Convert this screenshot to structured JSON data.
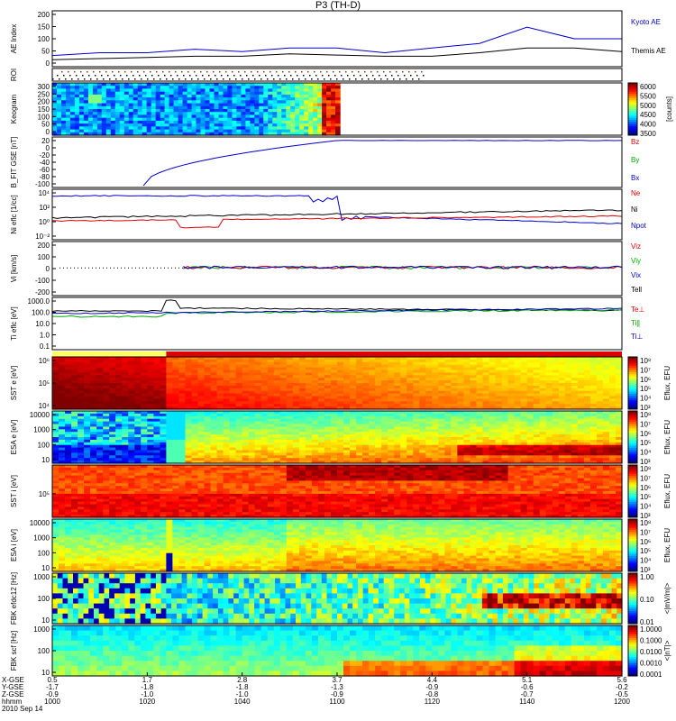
{
  "title": "P3 (TH-D)",
  "colors": {
    "blue": "#0000cc",
    "red": "#dd0000",
    "green": "#00aa00",
    "black": "#000000"
  },
  "chart_data": [
    {
      "type": "line",
      "panel": "ae_index",
      "ylabel": "AE Index",
      "yticks": [
        "200",
        "150",
        "100",
        "50",
        "0"
      ],
      "ylim": [
        -20,
        220
      ],
      "x_hhmm": [
        "1000",
        "1010",
        "1020",
        "1030",
        "1040",
        "1050",
        "1100",
        "1110",
        "1120",
        "1130",
        "1140",
        "1150",
        "1200"
      ],
      "series": [
        {
          "name": "Kyoto AE",
          "color": "#0000cc",
          "values": [
            28,
            40,
            40,
            55,
            45,
            60,
            60,
            40,
            60,
            80,
            150,
            100,
            100
          ]
        },
        {
          "name": "Themis AE",
          "color": "#000000",
          "values": [
            10,
            15,
            20,
            25,
            25,
            35,
            30,
            25,
            25,
            40,
            60,
            60,
            45
          ]
        }
      ]
    },
    {
      "type": "table",
      "panel": "roi",
      "ylabel": "ROI"
    },
    {
      "type": "heatmap",
      "panel": "keogram",
      "ylabel": "Keogram",
      "yticks": [
        "300",
        "250",
        "200",
        "150",
        "100",
        "50",
        "0"
      ],
      "colorbar_ticks": [
        "6000",
        "5500",
        "5000",
        "4500",
        "4000",
        "3500"
      ],
      "colorbar_label": "[counts]"
    },
    {
      "type": "line",
      "panel": "b_fit",
      "ylabel": "B_FIT GSE [nT]",
      "yticks": [
        "20",
        "0",
        "-20",
        "-40",
        "-60",
        "-80",
        "-100"
      ],
      "ylim": [
        -110,
        25
      ],
      "series": [
        {
          "name": "Bz",
          "color": "#dd0000"
        },
        {
          "name": "By",
          "color": "#00aa00"
        },
        {
          "name": "Bx",
          "color": "#0000cc"
        }
      ]
    },
    {
      "type": "line",
      "panel": "density",
      "ylabel": "Ni eflc [1/cc]",
      "yticks": [
        "10⁴",
        "10²",
        "10⁰",
        "10⁻²"
      ],
      "series": [
        {
          "name": "Ne",
          "color": "#dd0000"
        },
        {
          "name": "Ni",
          "color": "#000000"
        },
        {
          "name": "Npot",
          "color": "#0000cc"
        }
      ]
    },
    {
      "type": "line",
      "panel": "velocity",
      "ylabel": "Vi [km/s]",
      "yticks": [
        "200",
        "100",
        "0",
        "-100",
        "-200"
      ],
      "series": [
        {
          "name": "Viz",
          "color": "#dd0000"
        },
        {
          "name": "Viy",
          "color": "#00aa00"
        },
        {
          "name": "Vix",
          "color": "#0000cc"
        },
        {
          "name": "Tell",
          "color": "#000000"
        }
      ]
    },
    {
      "type": "line",
      "panel": "temperature",
      "ylabel": "Ti eflc [eV]",
      "yticks": [
        "1000.0",
        "100.0",
        "10.0",
        "1.0",
        "0.1"
      ],
      "series": [
        {
          "name": "Te⊥",
          "color": "#dd0000"
        },
        {
          "name": "Ti∥",
          "color": "#00aa00"
        },
        {
          "name": "Ti⊥",
          "color": "#0000cc"
        }
      ]
    },
    {
      "type": "heatmap",
      "panel": "sst_e",
      "ylabel": "SST e [eV]",
      "yticks": [
        "10⁶",
        "10⁵",
        "10⁴"
      ],
      "colorbar_ticks": [
        "10⁸",
        "10⁷",
        "10⁶",
        "10⁵",
        "10⁴",
        "10³"
      ],
      "colorbar_label": "Eflux, EFU"
    },
    {
      "type": "heatmap",
      "panel": "esa_e",
      "ylabel": "ESA e [eV]",
      "yticks": [
        "10000",
        "1000",
        "100",
        "10"
      ],
      "colorbar_ticks": [
        "10⁸",
        "10⁷",
        "10⁶",
        "10⁵",
        "10⁴",
        "10³"
      ],
      "colorbar_label": "Eflux, EFU"
    },
    {
      "type": "heatmap",
      "panel": "sst_i",
      "ylabel": "SST i [eV]",
      "yticks": [
        "10⁵"
      ],
      "colorbar_ticks": [
        "10⁸",
        "10⁷",
        "10⁶",
        "10⁵",
        "10⁴",
        "10³"
      ],
      "colorbar_label": "Eflux, EFU"
    },
    {
      "type": "heatmap",
      "panel": "esa_i",
      "ylabel": "ESA i [eV]",
      "yticks": [
        "10000",
        "1000",
        "100",
        "10"
      ],
      "colorbar_ticks": [
        "10⁸",
        "10⁷",
        "10⁶",
        "10⁵",
        "10⁴",
        "10³"
      ],
      "colorbar_label": "Eflux, EFU"
    },
    {
      "type": "heatmap",
      "panel": "fbk_e12",
      "ylabel": "FBK efdc12 [Hz]",
      "yticks": [
        "1000",
        "100",
        "10"
      ],
      "colorbar_ticks": [
        "1.00",
        "0.10",
        "0.01"
      ],
      "colorbar_label": "<|mV/m|>"
    },
    {
      "type": "heatmap",
      "panel": "fbk_scm",
      "ylabel": "FBK scf [Hz]",
      "yticks": [
        "1000",
        "100",
        "10"
      ],
      "colorbar_ticks": [
        "1.0000",
        "0.1000",
        "0.0100",
        "0.0010",
        "0.0001"
      ],
      "colorbar_label": "<|nT|>"
    }
  ],
  "x_axis": {
    "labels": [
      "X-GSE",
      "Y-GSE",
      "Z-GSE",
      "hhmm",
      "2010 Sep 14"
    ],
    "columns": [
      {
        "x": "0.5",
        "y": "-1.7",
        "z": "-0.9",
        "t": "1000"
      },
      {
        "x": "1.7",
        "y": "-1.8",
        "z": "-1.0",
        "t": "1020"
      },
      {
        "x": "2.8",
        "y": "-1.8",
        "z": "-1.0",
        "t": "1040"
      },
      {
        "x": "3.7",
        "y": "-1.3",
        "z": "-0.9",
        "t": "1100"
      },
      {
        "x": "4.4",
        "y": "-0.9",
        "z": "-0.8",
        "t": "1120"
      },
      {
        "x": "5.1",
        "y": "-0.6",
        "z": "-0.7",
        "t": "1140"
      },
      {
        "x": "5.6",
        "y": "-0.2",
        "z": "-0.5",
        "t": "1200"
      }
    ]
  }
}
